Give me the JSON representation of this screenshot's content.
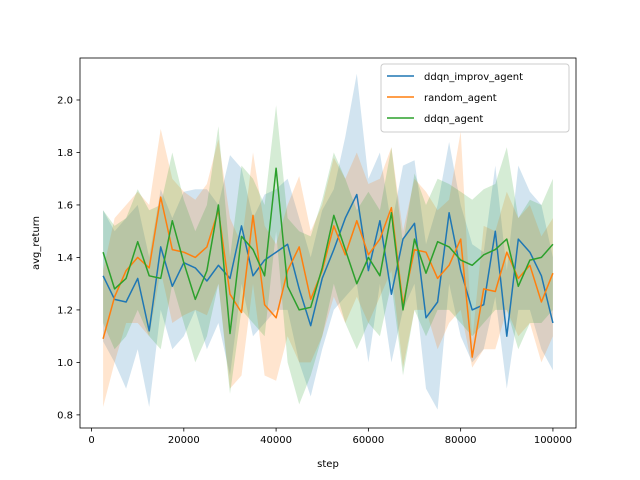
{
  "chart_data": {
    "type": "line",
    "xlabel": "step",
    "ylabel": "avg_return",
    "xlim": [
      -2500,
      105000
    ],
    "ylim": [
      0.75,
      2.16
    ],
    "xticks": [
      0,
      20000,
      40000,
      60000,
      80000,
      100000
    ],
    "xtick_labels": [
      "0",
      "20000",
      "40000",
      "60000",
      "80000",
      "100000"
    ],
    "yticks": [
      0.8,
      1.0,
      1.2,
      1.4,
      1.6,
      1.8,
      2.0
    ],
    "ytick_labels": [
      "0.8",
      "1.0",
      "1.2",
      "1.4",
      "1.6",
      "1.8",
      "2.0"
    ],
    "legend_position": "top-right",
    "x": [
      2500,
      5000,
      7500,
      10000,
      12500,
      15000,
      17500,
      20000,
      22500,
      25000,
      27500,
      30000,
      32500,
      35000,
      37500,
      40000,
      42500,
      45000,
      47500,
      50000,
      52500,
      55000,
      57500,
      60000,
      62500,
      65000,
      67500,
      70000,
      72500,
      75000,
      77500,
      80000,
      82500,
      85000,
      87500,
      90000,
      92500,
      95000,
      97500,
      100000
    ],
    "series": [
      {
        "name": "ddqn_improv_agent",
        "color": "#1f77b4",
        "values": [
          1.33,
          1.24,
          1.23,
          1.32,
          1.12,
          1.44,
          1.29,
          1.38,
          1.36,
          1.31,
          1.37,
          1.32,
          1.52,
          1.33,
          1.39,
          1.42,
          1.45,
          1.28,
          1.14,
          1.32,
          1.43,
          1.55,
          1.64,
          1.35,
          1.54,
          1.26,
          1.47,
          1.53,
          1.17,
          1.23,
          1.57,
          1.35,
          1.2,
          1.22,
          1.5,
          1.1,
          1.47,
          1.42,
          1.33,
          1.15
        ],
        "lower": [
          1.08,
          1.0,
          0.9,
          1.05,
          0.83,
          1.2,
          1.05,
          1.1,
          1.2,
          1.05,
          1.15,
          0.95,
          1.3,
          1.1,
          1.15,
          1.2,
          1.2,
          1.0,
          0.87,
          1.05,
          1.2,
          1.25,
          1.3,
          1.0,
          1.3,
          1.0,
          1.2,
          1.3,
          0.9,
          0.82,
          1.3,
          1.1,
          1.0,
          1.05,
          1.25,
          0.9,
          1.2,
          1.2,
          1.05,
          0.97
        ],
        "upper": [
          1.58,
          1.5,
          1.55,
          1.6,
          1.4,
          1.66,
          1.55,
          1.65,
          1.66,
          1.66,
          1.6,
          1.79,
          1.74,
          1.55,
          1.64,
          1.66,
          1.7,
          1.55,
          1.4,
          1.58,
          1.66,
          1.86,
          2.1,
          1.7,
          1.8,
          1.52,
          1.75,
          1.77,
          1.45,
          1.6,
          1.84,
          1.6,
          1.45,
          1.42,
          1.75,
          1.35,
          1.75,
          1.65,
          1.6,
          1.4
        ]
      },
      {
        "name": "random_agent",
        "color": "#ff7f0e",
        "values": [
          1.09,
          1.25,
          1.35,
          1.4,
          1.36,
          1.63,
          1.43,
          1.42,
          1.4,
          1.44,
          1.58,
          1.26,
          1.19,
          1.56,
          1.22,
          1.17,
          1.35,
          1.44,
          1.24,
          1.35,
          1.52,
          1.41,
          1.54,
          1.41,
          1.47,
          1.59,
          1.22,
          1.43,
          1.42,
          1.32,
          1.37,
          1.47,
          1.02,
          1.28,
          1.27,
          1.42,
          1.32,
          1.37,
          1.23,
          1.34
        ],
        "lower": [
          0.83,
          1.0,
          1.15,
          1.15,
          1.1,
          1.35,
          1.15,
          1.18,
          1.2,
          1.18,
          1.3,
          0.9,
          0.95,
          1.3,
          0.95,
          0.93,
          1.1,
          1.0,
          1.0,
          1.1,
          1.25,
          1.15,
          1.25,
          1.15,
          1.25,
          1.35,
          0.98,
          1.2,
          1.2,
          1.05,
          1.15,
          1.2,
          0.98,
          1.05,
          1.05,
          1.2,
          1.1,
          1.15,
          1.0,
          1.1
        ],
        "upper": [
          1.35,
          1.55,
          1.6,
          1.65,
          1.6,
          1.89,
          1.7,
          1.65,
          1.62,
          1.68,
          1.85,
          1.55,
          1.45,
          1.8,
          1.52,
          1.45,
          1.6,
          1.71,
          1.5,
          1.6,
          1.78,
          1.7,
          1.8,
          1.68,
          1.7,
          1.82,
          1.5,
          1.7,
          1.65,
          1.58,
          1.62,
          1.88,
          1.08,
          1.52,
          1.5,
          1.65,
          1.55,
          1.6,
          1.48,
          1.55
        ]
      },
      {
        "name": "ddqn_agent",
        "color": "#2ca02c",
        "values": [
          1.42,
          1.28,
          1.32,
          1.46,
          1.33,
          1.32,
          1.54,
          1.38,
          1.24,
          1.35,
          1.6,
          1.11,
          1.48,
          1.43,
          1.33,
          1.74,
          1.29,
          1.2,
          1.21,
          1.36,
          1.56,
          1.43,
          1.3,
          1.4,
          1.33,
          1.57,
          1.2,
          1.47,
          1.34,
          1.46,
          1.44,
          1.39,
          1.37,
          1.41,
          1.43,
          1.47,
          1.29,
          1.39,
          1.4,
          1.45
        ],
        "lower": [
          1.15,
          1.05,
          1.1,
          1.2,
          1.1,
          1.05,
          1.3,
          1.15,
          1.0,
          1.1,
          1.3,
          0.88,
          1.2,
          1.15,
          1.1,
          1.5,
          1.0,
          0.84,
          0.95,
          1.1,
          1.3,
          1.15,
          1.05,
          1.15,
          1.1,
          1.3,
          0.95,
          1.2,
          1.1,
          1.2,
          1.2,
          1.15,
          1.1,
          1.15,
          1.2,
          1.2,
          1.05,
          1.15,
          1.15,
          1.2
        ],
        "upper": [
          1.58,
          1.52,
          1.55,
          1.66,
          1.58,
          1.6,
          1.8,
          1.62,
          1.5,
          1.6,
          1.9,
          1.4,
          1.75,
          1.7,
          1.6,
          1.98,
          1.55,
          1.5,
          1.48,
          1.62,
          1.8,
          1.7,
          1.58,
          1.65,
          1.58,
          1.82,
          1.45,
          1.72,
          1.6,
          1.7,
          1.68,
          1.65,
          1.62,
          1.66,
          1.68,
          1.82,
          1.55,
          1.62,
          1.6,
          1.7
        ]
      }
    ]
  }
}
